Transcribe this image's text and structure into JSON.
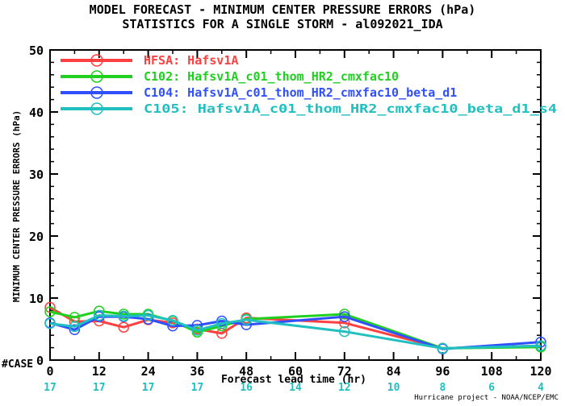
{
  "chart_data": {
    "type": "line",
    "title_line1": "MODEL FORECAST - MINIMUM CENTER PRESSURE ERRORS (hPa)",
    "title_line2": "STATISTICS FOR A SINGLE STORM - al092021_IDA",
    "xlabel": "Forecast lead time (hr)",
    "ylabel": "MINIMUM CENTER PRESSURE ERRORS (hPa)",
    "ylim": [
      0,
      50
    ],
    "xlim": [
      0,
      120
    ],
    "xticks": [
      0,
      12,
      24,
      36,
      48,
      60,
      72,
      84,
      96,
      108,
      120
    ],
    "yticks": [
      0,
      10,
      20,
      30,
      40,
      50
    ],
    "grid": false,
    "legend_position": "top-left",
    "case_label": "#CASE",
    "case_counts": [
      17,
      17,
      17,
      17,
      16,
      14,
      12,
      10,
      8,
      6,
      4
    ],
    "case_color": "#20c0c0",
    "credit": "Hurricane project - NOAA/NCEP/EMC",
    "series": [
      {
        "name": "HFSA: Hafsv1A",
        "color": "#ff4040",
        "x": [
          0,
          6,
          12,
          18,
          24,
          30,
          36,
          42,
          48,
          72,
          96,
          120
        ],
        "values": [
          8.5,
          6.2,
          6.3,
          5.3,
          6.5,
          6.0,
          5.0,
          4.3,
          6.8,
          6.0,
          1.9,
          2.3
        ]
      },
      {
        "name": "C102: Hafsv1A_c01_thom_HR2_cmxfac10",
        "color": "#20d020",
        "x": [
          0,
          6,
          12,
          18,
          24,
          30,
          36,
          42,
          48,
          72,
          96,
          120
        ],
        "values": [
          7.8,
          6.9,
          7.9,
          7.4,
          7.4,
          6.3,
          4.5,
          5.5,
          6.6,
          7.4,
          1.9,
          2.1
        ]
      },
      {
        "name": "C104: Hafsv1A_c01_thom_HR2_cmxfac10_beta_d1",
        "color": "#3050ff",
        "x": [
          0,
          6,
          12,
          18,
          24,
          30,
          36,
          42,
          48,
          72,
          96,
          120
        ],
        "values": [
          6.0,
          4.9,
          7.0,
          7.0,
          6.6,
          5.5,
          5.6,
          6.3,
          5.7,
          7.0,
          1.8,
          2.9
        ]
      },
      {
        "name": "C105: Hafsv1A_c01_thom_HR2_cmxfac10_beta_d1_s4",
        "color": "#20c0c0",
        "x": [
          0,
          6,
          12,
          18,
          24,
          30,
          36,
          42,
          48,
          72,
          96,
          120
        ],
        "values": [
          5.9,
          5.4,
          7.2,
          7.1,
          7.2,
          6.4,
          4.8,
          5.9,
          6.5,
          4.6,
          1.9,
          2.3
        ]
      }
    ]
  }
}
